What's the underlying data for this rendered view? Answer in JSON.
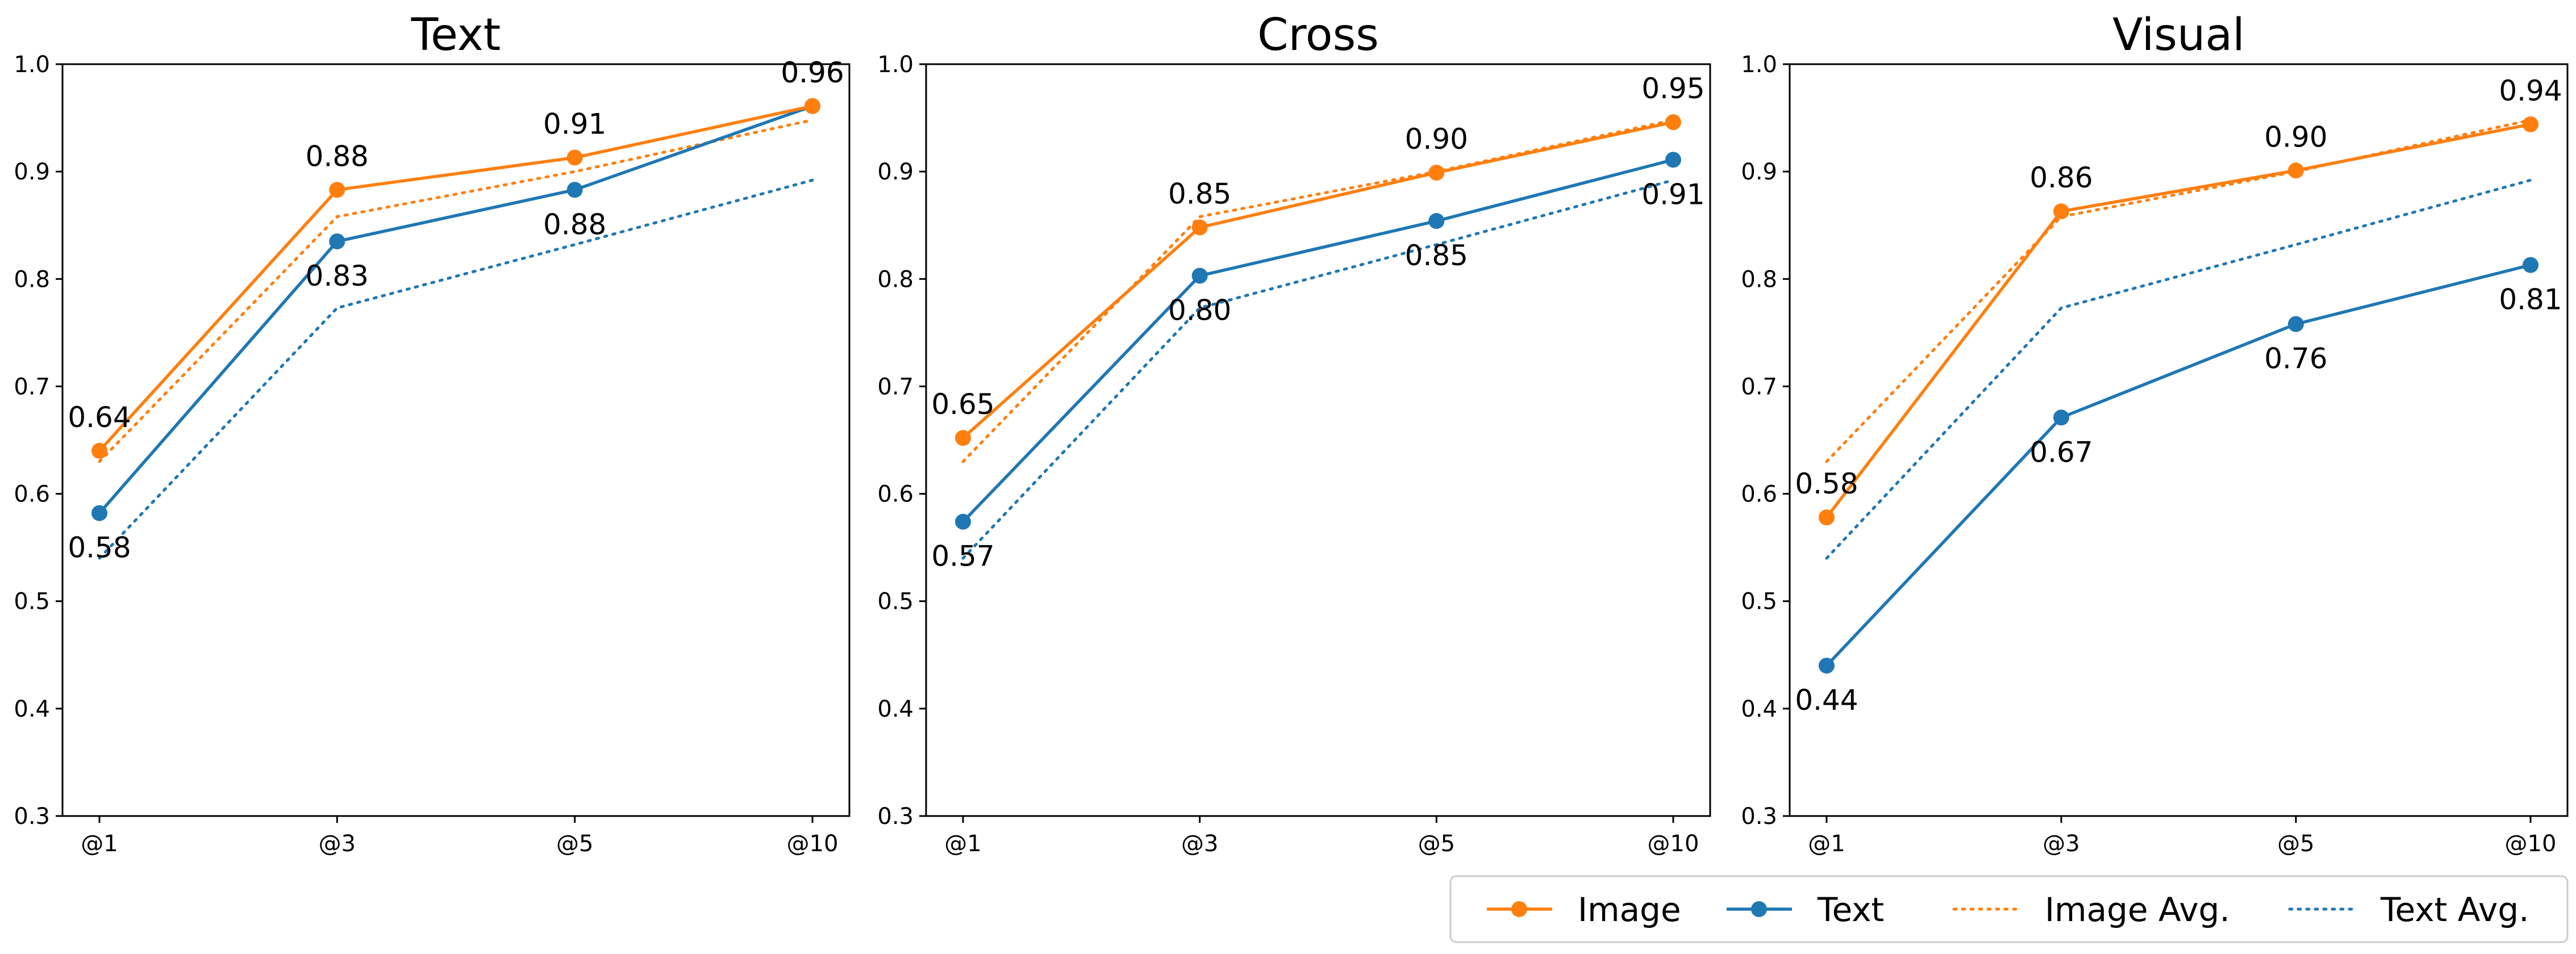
{
  "colors": {
    "image": "#ff7f0e",
    "text": "#1f77b4"
  },
  "legend": {
    "position": "bottom-right",
    "entries": [
      {
        "key": "image",
        "label": "Image",
        "style": "solid-marker"
      },
      {
        "key": "text",
        "label": "Text",
        "style": "solid-marker"
      },
      {
        "key": "image_avg",
        "label": "Image Avg.",
        "style": "dotted"
      },
      {
        "key": "text_avg",
        "label": "Text Avg.",
        "style": "dotted"
      }
    ]
  },
  "chart_data": [
    {
      "type": "line",
      "title": "Text",
      "categories": [
        "@1",
        "@3",
        "@5",
        "@10"
      ],
      "ylim": [
        0.3,
        1.0
      ],
      "yticks": [
        "0.3",
        "0.4",
        "0.5",
        "0.6",
        "0.7",
        "0.8",
        "0.9",
        "1.0"
      ],
      "series": [
        {
          "name": "Image",
          "values": [
            0.64,
            0.883,
            0.913,
            0.961
          ],
          "labels": [
            "0.64",
            "0.88",
            "0.91",
            "0.96"
          ],
          "label_pos": [
            "above",
            "above",
            "above",
            "above"
          ]
        },
        {
          "name": "Text",
          "values": [
            0.582,
            0.835,
            0.883,
            0.961
          ],
          "labels": [
            "0.58",
            "0.83",
            "0.88",
            "0.96"
          ],
          "label_pos": [
            "below",
            "below",
            "below",
            "above"
          ]
        },
        {
          "name": "Image Avg.",
          "values": [
            0.63,
            0.858,
            0.9,
            0.948
          ]
        },
        {
          "name": "Text Avg.",
          "values": [
            0.54,
            0.773,
            0.832,
            0.892
          ]
        }
      ]
    },
    {
      "type": "line",
      "title": "Cross",
      "categories": [
        "@1",
        "@3",
        "@5",
        "@10"
      ],
      "ylim": [
        0.3,
        1.0
      ],
      "yticks": [
        "0.3",
        "0.4",
        "0.5",
        "0.6",
        "0.7",
        "0.8",
        "0.9",
        "1.0"
      ],
      "series": [
        {
          "name": "Image",
          "values": [
            0.652,
            0.848,
            0.899,
            0.946
          ],
          "labels": [
            "0.65",
            "0.85",
            "0.90",
            "0.95"
          ],
          "label_pos": [
            "above",
            "above",
            "above",
            "above"
          ]
        },
        {
          "name": "Text",
          "values": [
            0.574,
            0.803,
            0.854,
            0.911
          ],
          "labels": [
            "0.57",
            "0.80",
            "0.85",
            "0.91"
          ],
          "label_pos": [
            "below",
            "below",
            "below",
            "below"
          ]
        },
        {
          "name": "Image Avg.",
          "values": [
            0.63,
            0.858,
            0.9,
            0.948
          ]
        },
        {
          "name": "Text Avg.",
          "values": [
            0.54,
            0.773,
            0.832,
            0.892
          ]
        }
      ]
    },
    {
      "type": "line",
      "title": "Visual",
      "categories": [
        "@1",
        "@3",
        "@5",
        "@10"
      ],
      "ylim": [
        0.3,
        1.0
      ],
      "yticks": [
        "0.3",
        "0.4",
        "0.5",
        "0.6",
        "0.7",
        "0.8",
        "0.9",
        "1.0"
      ],
      "series": [
        {
          "name": "Image",
          "values": [
            0.578,
            0.863,
            0.901,
            0.944
          ],
          "labels": [
            "0.58",
            "0.86",
            "0.90",
            "0.94"
          ],
          "label_pos": [
            "above",
            "above",
            "above",
            "above"
          ]
        },
        {
          "name": "Text",
          "values": [
            0.44,
            0.671,
            0.758,
            0.813
          ],
          "labels": [
            "0.44",
            "0.67",
            "0.76",
            "0.81"
          ],
          "label_pos": [
            "below",
            "below",
            "below",
            "below"
          ]
        },
        {
          "name": "Image Avg.",
          "values": [
            0.63,
            0.858,
            0.9,
            0.948
          ]
        },
        {
          "name": "Text Avg.",
          "values": [
            0.54,
            0.773,
            0.832,
            0.892
          ]
        }
      ]
    }
  ]
}
